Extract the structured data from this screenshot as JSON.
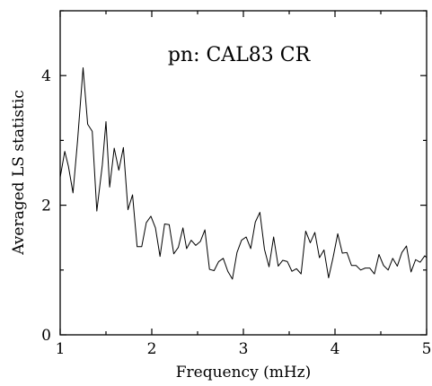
{
  "chart_data": {
    "type": "line",
    "title": "pn: CAL83 CR",
    "xlabel": "Frequency (mHz)",
    "ylabel": "Averaged LS statistic",
    "xlim": [
      1,
      5
    ],
    "ylim": [
      0,
      5
    ],
    "grid": false,
    "legend": "none",
    "line_color": "#000000",
    "x_ticks": [
      {
        "value": 1,
        "label": "1"
      },
      {
        "value": 2,
        "label": "2"
      },
      {
        "value": 3,
        "label": "3"
      },
      {
        "value": 4,
        "label": "4"
      },
      {
        "value": 5,
        "label": "5"
      }
    ],
    "y_ticks": [
      {
        "value": 0,
        "label": "0"
      },
      {
        "value": 2,
        "label": "2"
      },
      {
        "value": 4,
        "label": "4"
      }
    ],
    "series": [
      {
        "x": [
          1.0,
          1.05,
          1.09,
          1.14,
          1.19,
          1.25,
          1.3,
          1.35,
          1.4,
          1.46,
          1.5,
          1.54,
          1.59,
          1.64,
          1.69,
          1.74,
          1.79,
          1.84,
          1.89,
          1.94,
          1.99,
          2.04,
          2.09,
          2.14,
          2.19,
          2.24,
          2.29,
          2.34,
          2.38,
          2.43,
          2.48,
          2.53,
          2.58,
          2.63,
          2.68,
          2.73,
          2.78,
          2.83,
          2.88,
          2.93,
          2.98,
          3.03,
          3.08,
          3.13,
          3.18,
          3.23,
          3.28,
          3.33,
          3.38,
          3.43,
          3.48,
          3.53,
          3.58,
          3.63,
          3.68,
          3.73,
          3.78,
          3.83,
          3.88,
          3.93,
          3.98,
          4.03,
          4.08,
          4.13,
          4.18,
          4.23,
          4.28,
          4.33,
          4.38,
          4.43,
          4.48,
          4.53,
          4.58,
          4.63,
          4.68,
          4.73,
          4.78,
          4.83,
          4.88,
          4.93,
          4.98,
          5.0
        ],
        "y": [
          2.43,
          2.83,
          2.6,
          2.19,
          3.0,
          4.12,
          3.25,
          3.14,
          1.91,
          2.62,
          3.29,
          2.28,
          2.88,
          2.54,
          2.89,
          1.93,
          2.16,
          1.36,
          1.36,
          1.73,
          1.83,
          1.65,
          1.21,
          1.71,
          1.7,
          1.25,
          1.35,
          1.65,
          1.33,
          1.46,
          1.38,
          1.44,
          1.62,
          1.01,
          0.99,
          1.13,
          1.18,
          0.98,
          0.86,
          1.27,
          1.46,
          1.51,
          1.33,
          1.74,
          1.89,
          1.32,
          1.05,
          1.51,
          1.06,
          1.15,
          1.13,
          0.98,
          1.02,
          0.94,
          1.6,
          1.42,
          1.58,
          1.19,
          1.31,
          0.88,
          1.2,
          1.56,
          1.26,
          1.27,
          1.07,
          1.07,
          1.0,
          1.03,
          1.03,
          0.94,
          1.24,
          1.07,
          1.0,
          1.18,
          1.06,
          1.27,
          1.37,
          0.97,
          1.16,
          1.12,
          1.22,
          1.19
        ]
      }
    ]
  }
}
